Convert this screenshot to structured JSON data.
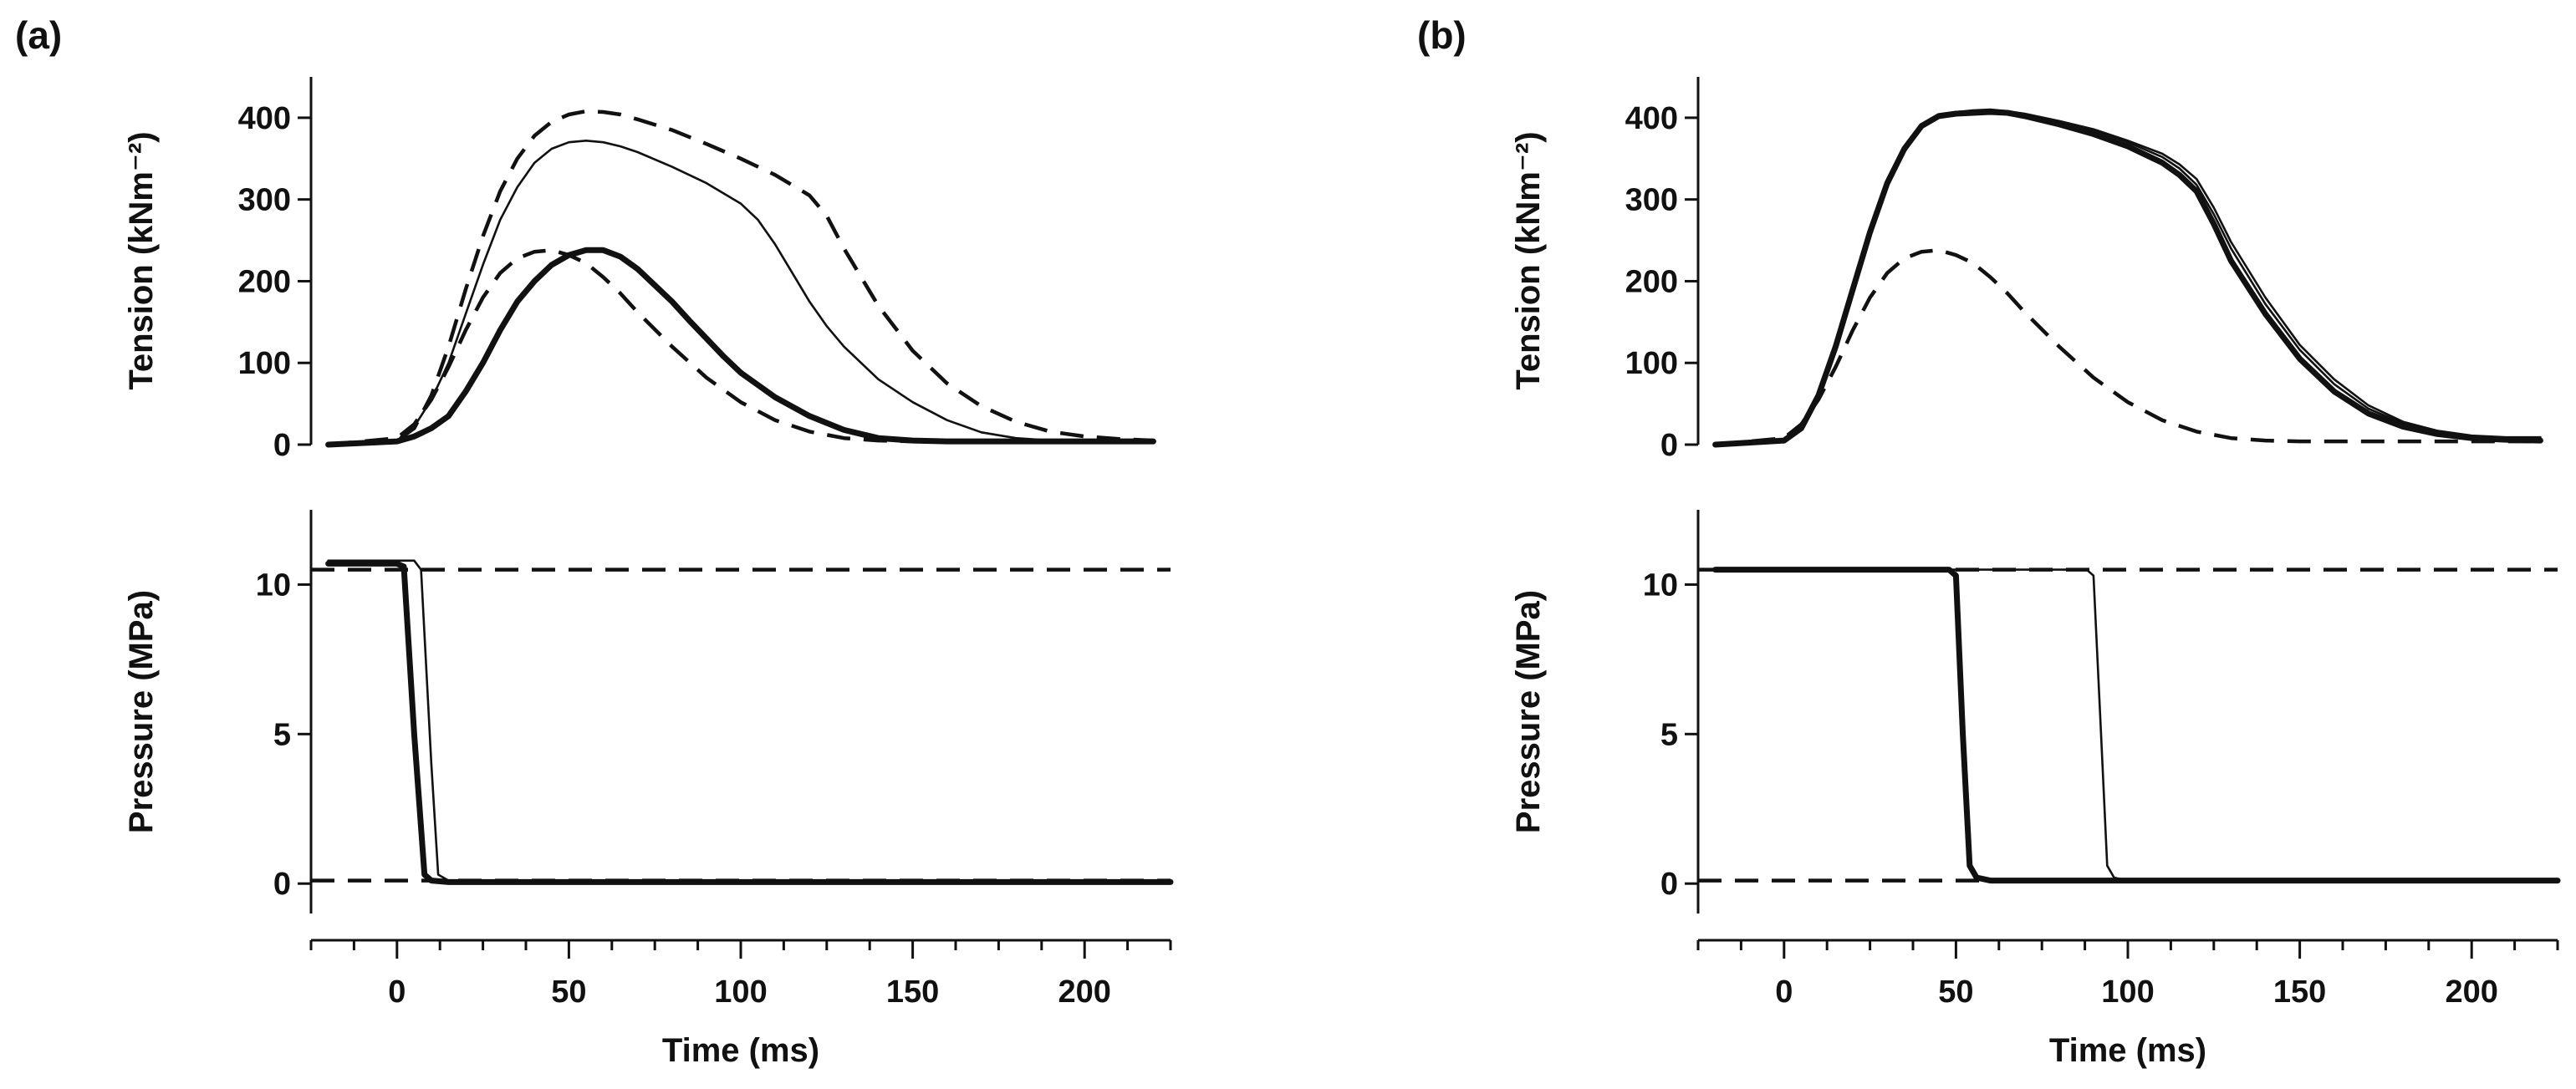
{
  "figure": {
    "panels": [
      "(a)",
      "(b)"
    ],
    "tension_label": "Tension (kNm⁻²)",
    "pressure_label": "Pressure (MPa)",
    "time_label": "Time (ms)"
  },
  "chart_data": [
    {
      "type": "line",
      "panel": "(a)",
      "subplot": "top",
      "title": "",
      "xlabel": "",
      "ylabel": "Tension (kNm⁻²)",
      "xlim": [
        -25,
        225
      ],
      "ylim": [
        0,
        450
      ],
      "xticks": [
        0,
        50,
        100,
        150,
        200
      ],
      "yticks": [
        0,
        100,
        200,
        300,
        400
      ],
      "series": [
        {
          "name": "dashed-upper",
          "style": "dashed",
          "x": [
            -20,
            0,
            5,
            10,
            15,
            20,
            25,
            30,
            35,
            40,
            45,
            50,
            55,
            60,
            65,
            70,
            80,
            90,
            100,
            110,
            120,
            125,
            130,
            140,
            150,
            160,
            170,
            180,
            190,
            200,
            210,
            220
          ],
          "y": [
            0,
            5,
            20,
            60,
            120,
            190,
            255,
            310,
            350,
            378,
            395,
            404,
            408,
            407,
            404,
            398,
            385,
            368,
            350,
            330,
            305,
            280,
            240,
            170,
            115,
            75,
            47,
            28,
            16,
            10,
            7,
            5
          ]
        },
        {
          "name": "thin-upper",
          "style": "thin",
          "x": [
            -20,
            0,
            5,
            10,
            15,
            20,
            25,
            30,
            35,
            40,
            45,
            50,
            55,
            60,
            65,
            70,
            80,
            90,
            100,
            105,
            110,
            115,
            120,
            125,
            130,
            140,
            150,
            160,
            170,
            180,
            190,
            200,
            210,
            220
          ],
          "y": [
            0,
            5,
            22,
            55,
            100,
            160,
            220,
            275,
            315,
            345,
            362,
            370,
            372,
            370,
            365,
            358,
            340,
            320,
            295,
            275,
            245,
            210,
            175,
            145,
            120,
            80,
            52,
            30,
            15,
            8,
            5,
            4,
            4,
            4
          ]
        },
        {
          "name": "thick-lower",
          "style": "thick",
          "x": [
            -20,
            0,
            5,
            10,
            15,
            20,
            25,
            30,
            35,
            40,
            45,
            50,
            55,
            60,
            65,
            70,
            75,
            80,
            85,
            90,
            95,
            100,
            110,
            120,
            130,
            140,
            150,
            160,
            170,
            180,
            190,
            200,
            210,
            220
          ],
          "y": [
            0,
            4,
            10,
            20,
            35,
            65,
            100,
            140,
            175,
            200,
            220,
            232,
            238,
            238,
            230,
            215,
            195,
            175,
            152,
            130,
            108,
            88,
            58,
            35,
            18,
            8,
            5,
            4,
            4,
            4,
            4,
            4,
            4,
            4
          ]
        },
        {
          "name": "dashed-lower",
          "style": "dashed",
          "x": [
            -20,
            0,
            5,
            10,
            15,
            20,
            25,
            30,
            35,
            40,
            45,
            50,
            55,
            60,
            65,
            70,
            80,
            90,
            100,
            110,
            120,
            130,
            140,
            150,
            160,
            170,
            180,
            190,
            200,
            210,
            220
          ],
          "y": [
            0,
            8,
            25,
            55,
            95,
            140,
            180,
            210,
            228,
            236,
            238,
            232,
            222,
            205,
            185,
            162,
            120,
            82,
            52,
            30,
            16,
            8,
            5,
            4,
            4,
            4,
            4,
            4,
            4,
            4,
            4
          ]
        }
      ]
    },
    {
      "type": "line",
      "panel": "(a)",
      "subplot": "bottom",
      "title": "",
      "xlabel": "Time (ms)",
      "ylabel": "Pressure (MPa)",
      "xlim": [
        -25,
        225
      ],
      "ylim": [
        -1,
        12.5
      ],
      "xticks": [
        0,
        50,
        100,
        150,
        200
      ],
      "yticks": [
        0,
        5,
        10
      ],
      "series": [
        {
          "name": "dashed-high",
          "style": "dashed",
          "x": [
            -25,
            225
          ],
          "y": [
            10.5,
            10.5
          ]
        },
        {
          "name": "dashed-low",
          "style": "dashed",
          "x": [
            -25,
            225
          ],
          "y": [
            0.1,
            0.1
          ]
        },
        {
          "name": "thick-release",
          "style": "thick",
          "x": [
            -20,
            0,
            2,
            5,
            8,
            10,
            15,
            225
          ],
          "y": [
            10.7,
            10.7,
            10.6,
            5.0,
            0.3,
            0.1,
            0.05,
            0.05
          ]
        },
        {
          "name": "thin-release",
          "style": "thin",
          "x": [
            -20,
            5,
            7,
            10,
            12,
            15,
            225
          ],
          "y": [
            10.8,
            10.8,
            10.5,
            4.0,
            0.3,
            0.1,
            0.05
          ]
        }
      ]
    },
    {
      "type": "line",
      "panel": "(b)",
      "subplot": "top",
      "title": "",
      "xlabel": "",
      "ylabel": "Tension (kNm⁻²)",
      "xlim": [
        -25,
        225
      ],
      "ylim": [
        0,
        450
      ],
      "xticks": [
        0,
        50,
        100,
        150,
        200
      ],
      "yticks": [
        0,
        100,
        200,
        300,
        400
      ],
      "series": [
        {
          "name": "thick",
          "style": "thick",
          "x": [
            -20,
            0,
            5,
            10,
            15,
            20,
            25,
            30,
            35,
            40,
            45,
            50,
            55,
            60,
            65,
            70,
            80,
            90,
            100,
            110,
            115,
            120,
            125,
            130,
            140,
            150,
            160,
            170,
            180,
            190,
            200,
            210,
            220
          ],
          "y": [
            0,
            5,
            20,
            60,
            120,
            190,
            260,
            320,
            362,
            390,
            402,
            405,
            406,
            407,
            406,
            402,
            392,
            380,
            365,
            345,
            330,
            310,
            270,
            225,
            160,
            105,
            65,
            38,
            22,
            13,
            8,
            6,
            5
          ]
        },
        {
          "name": "thin-a",
          "style": "thin",
          "x": [
            -20,
            0,
            5,
            10,
            15,
            20,
            25,
            30,
            35,
            40,
            45,
            50,
            55,
            60,
            65,
            70,
            80,
            90,
            100,
            110,
            115,
            120,
            125,
            130,
            140,
            150,
            160,
            170,
            180,
            190,
            200,
            210,
            220
          ],
          "y": [
            0,
            5,
            18,
            55,
            115,
            185,
            255,
            315,
            358,
            388,
            400,
            404,
            406,
            408,
            407,
            404,
            395,
            385,
            370,
            352,
            338,
            318,
            282,
            240,
            172,
            116,
            74,
            44,
            26,
            15,
            10,
            8,
            8
          ]
        },
        {
          "name": "thin-b",
          "style": "thin",
          "x": [
            -20,
            0,
            5,
            10,
            15,
            20,
            25,
            30,
            35,
            40,
            45,
            50,
            55,
            60,
            65,
            70,
            80,
            90,
            100,
            110,
            115,
            120,
            125,
            130,
            140,
            150,
            160,
            170,
            180,
            190,
            200,
            210,
            220
          ],
          "y": [
            0,
            6,
            22,
            62,
            125,
            195,
            265,
            325,
            365,
            392,
            403,
            407,
            409,
            410,
            408,
            405,
            396,
            386,
            372,
            356,
            343,
            325,
            290,
            248,
            180,
            122,
            80,
            48,
            28,
            17,
            11,
            9,
            9
          ]
        },
        {
          "name": "dashed",
          "style": "dashed",
          "x": [
            -20,
            0,
            5,
            10,
            15,
            20,
            25,
            30,
            35,
            40,
            45,
            50,
            55,
            60,
            65,
            70,
            80,
            90,
            100,
            110,
            120,
            130,
            140,
            150,
            160,
            170,
            180,
            190,
            200,
            210,
            220
          ],
          "y": [
            0,
            8,
            25,
            55,
            95,
            140,
            180,
            210,
            228,
            236,
            238,
            232,
            222,
            205,
            185,
            162,
            120,
            82,
            52,
            30,
            16,
            8,
            5,
            4,
            4,
            4,
            4,
            4,
            4,
            4,
            4
          ]
        }
      ]
    },
    {
      "type": "line",
      "panel": "(b)",
      "subplot": "bottom",
      "title": "",
      "xlabel": "Time (ms)",
      "ylabel": "Pressure (MPa)",
      "xlim": [
        -25,
        225
      ],
      "ylim": [
        -1,
        12.5
      ],
      "xticks": [
        0,
        50,
        100,
        150,
        200
      ],
      "yticks": [
        0,
        5,
        10
      ],
      "series": [
        {
          "name": "dashed-high",
          "style": "dashed",
          "x": [
            -25,
            225
          ],
          "y": [
            10.5,
            10.5
          ]
        },
        {
          "name": "dashed-low",
          "style": "dashed",
          "x": [
            -25,
            225
          ],
          "y": [
            0.1,
            0.1
          ]
        },
        {
          "name": "thick-release",
          "style": "thick",
          "x": [
            -20,
            48,
            50,
            52,
            54,
            56,
            60,
            225
          ],
          "y": [
            10.5,
            10.5,
            10.3,
            5.0,
            0.6,
            0.2,
            0.1,
            0.1
          ]
        },
        {
          "name": "thin-release",
          "style": "thin",
          "x": [
            -20,
            88,
            90,
            92,
            94,
            96,
            100,
            225
          ],
          "y": [
            10.5,
            10.5,
            10.3,
            5.5,
            0.6,
            0.2,
            0.1,
            0.1
          ]
        }
      ]
    }
  ]
}
